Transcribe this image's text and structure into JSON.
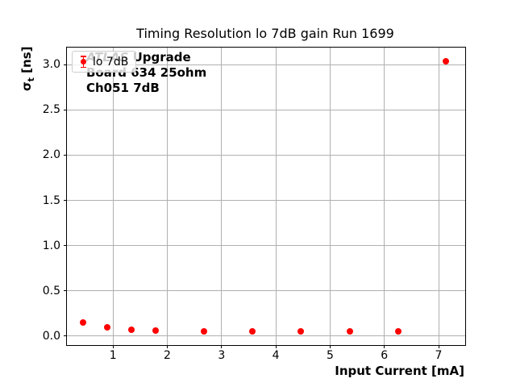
{
  "figure": {
    "title": "Timing Resolution lo 7dB gain Run 1699",
    "xlabel": "Input Current [mA]",
    "ylabel_sigma": "σ",
    "ylabel_sub": "t",
    "ylabel_units": " [ns]",
    "annotation": {
      "line1_brand": "ATLAS",
      "line1_rest": " Upgrade",
      "line2": "Board 634 25ohm",
      "line3": "Ch051 7dB"
    },
    "legend": {
      "label": "lo 7dB"
    }
  },
  "chart_data": {
    "type": "scatter",
    "title": "Timing Resolution lo 7dB gain Run 1699",
    "xlabel": "Input Current [mA]",
    "ylabel": "σt [ns]",
    "grid": true,
    "legend_position": "upper left",
    "xlim": [
      0.15,
      7.49
    ],
    "ylim": [
      -0.1,
      3.19
    ],
    "xticks": [
      1,
      2,
      3,
      4,
      5,
      6,
      7
    ],
    "xtick_labels": [
      "1",
      "2",
      "3",
      "4",
      "5",
      "6",
      "7"
    ],
    "yticks": [
      0.0,
      0.5,
      1.0,
      1.5,
      2.0,
      2.5,
      3.0
    ],
    "ytick_labels": [
      "0.0",
      "0.5",
      "1.0",
      "1.5",
      "2.0",
      "2.5",
      "3.0"
    ],
    "series": [
      {
        "name": "lo 7dB",
        "marker": "circle-with-errorbar",
        "color": "#ff0000",
        "points": [
          {
            "x": 0.45,
            "y": 0.15
          },
          {
            "x": 0.89,
            "y": 0.1
          },
          {
            "x": 1.34,
            "y": 0.07
          },
          {
            "x": 1.79,
            "y": 0.06
          },
          {
            "x": 2.68,
            "y": 0.05
          },
          {
            "x": 3.57,
            "y": 0.05
          },
          {
            "x": 4.46,
            "y": 0.05
          },
          {
            "x": 5.36,
            "y": 0.05
          },
          {
            "x": 6.25,
            "y": 0.05
          },
          {
            "x": 7.14,
            "y": 3.04
          }
        ]
      }
    ],
    "colors": {
      "marker": "#ff0000",
      "grid": "#b0b0b0",
      "spine": "#000000",
      "text": "#000000"
    }
  }
}
